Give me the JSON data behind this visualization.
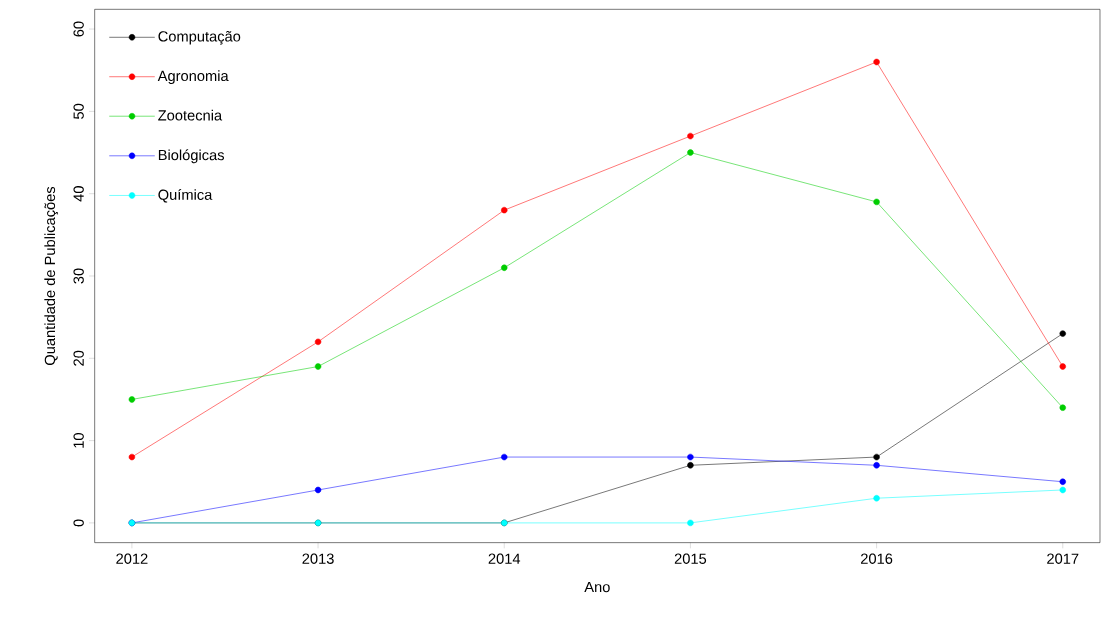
{
  "chart_data": {
    "type": "line",
    "xlabel": "Ano",
    "ylabel": "Quantidade de Publicações",
    "x": [
      2012,
      2013,
      2014,
      2015,
      2016,
      2017
    ],
    "xlim": [
      2011.8,
      2017.2
    ],
    "xticks": [
      2012,
      2013,
      2014,
      2015,
      2016,
      2017
    ],
    "ylim": [
      -2.4,
      62.4
    ],
    "yticks": [
      0,
      10,
      20,
      30,
      40,
      50,
      60
    ],
    "legend": "top left",
    "marker": "circle",
    "line_style": "solid",
    "series": [
      {
        "name": "Computação",
        "color": "#000000",
        "values": [
          0,
          0,
          0,
          7,
          8,
          23
        ]
      },
      {
        "name": "Agronomia",
        "color": "#ff0000",
        "values": [
          8,
          22,
          38,
          47,
          56,
          19
        ]
      },
      {
        "name": "Zootecnia",
        "color": "#00cd00",
        "values": [
          15,
          19,
          31,
          45,
          39,
          14
        ]
      },
      {
        "name": "Biológicas",
        "color": "#0000ff",
        "values": [
          0,
          4,
          8,
          8,
          7,
          5
        ]
      },
      {
        "name": "Química",
        "color": "#00ffff",
        "values": [
          0,
          0,
          0,
          0,
          3,
          4
        ]
      }
    ]
  }
}
